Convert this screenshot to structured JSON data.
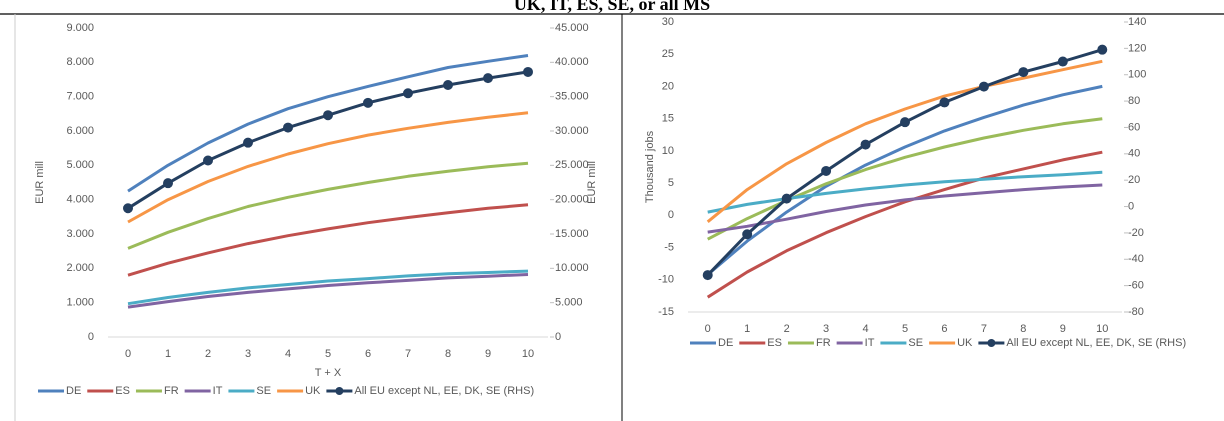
{
  "page_title": "UK, IT, ES, SE, or all MS",
  "chart_data": [
    {
      "type": "line",
      "categories": [
        "0",
        "1",
        "2",
        "3",
        "4",
        "5",
        "6",
        "7",
        "8",
        "9",
        "10"
      ],
      "x_label": "T + X",
      "y_label": "EUR mill",
      "y2_label": "EUR mill",
      "ylim": [
        0,
        9000
      ],
      "yticks": [
        0,
        {
          "value": 1000,
          "label": "1.000"
        },
        {
          "value": 2000,
          "label": "2.000"
        },
        {
          "value": 3000,
          "label": "3.000"
        },
        {
          "value": 4000,
          "label": "4.000"
        },
        {
          "value": 5000,
          "label": "5.000"
        },
        {
          "value": 6000,
          "label": "6.000"
        },
        {
          "value": 7000,
          "label": "7.000"
        },
        {
          "value": 8000,
          "label": "8.000"
        },
        {
          "value": 9000,
          "label": "9.000"
        }
      ],
      "y2lim": [
        0,
        45000
      ],
      "y2ticks": [
        0,
        {
          "value": 5000,
          "label": "5.000"
        },
        {
          "value": 10000,
          "label": "10.000"
        },
        {
          "value": 15000,
          "label": "15.000"
        },
        {
          "value": 20000,
          "label": "20.000"
        },
        {
          "value": 25000,
          "label": "25.000"
        },
        {
          "value": 30000,
          "label": "30.000"
        },
        {
          "value": 35000,
          "label": "35.000"
        },
        {
          "value": 40000,
          "label": "40.000"
        },
        {
          "value": 45000,
          "label": "45.000"
        }
      ],
      "series": [
        {
          "name": "DE",
          "color": "#4f81bd",
          "values": [
            4250,
            5000,
            5650,
            6200,
            6650,
            7000,
            7300,
            7580,
            7850,
            8030,
            8200
          ]
        },
        {
          "name": "ES",
          "color": "#c0504d",
          "values": [
            1800,
            2150,
            2450,
            2720,
            2950,
            3150,
            3330,
            3480,
            3620,
            3750,
            3850
          ]
        },
        {
          "name": "FR",
          "color": "#9bbb59",
          "values": [
            2580,
            3050,
            3450,
            3800,
            4070,
            4300,
            4500,
            4680,
            4830,
            4960,
            5060
          ]
        },
        {
          "name": "IT",
          "color": "#8064a2",
          "values": [
            870,
            1030,
            1180,
            1300,
            1400,
            1500,
            1580,
            1650,
            1720,
            1770,
            1820
          ]
        },
        {
          "name": "SE",
          "color": "#4bacc6",
          "values": [
            970,
            1150,
            1300,
            1430,
            1530,
            1630,
            1700,
            1780,
            1840,
            1880,
            1920
          ]
        },
        {
          "name": "UK",
          "color": "#f79646",
          "values": [
            3350,
            4000,
            4530,
            4970,
            5330,
            5630,
            5880,
            6080,
            6250,
            6400,
            6530
          ]
        },
        {
          "name": "All EU except NL, EE, DK, SE (RHS)",
          "color": "#243f60",
          "axis": "y2",
          "markers": true,
          "values": [
            18750,
            22400,
            25700,
            28300,
            30500,
            32300,
            34100,
            35500,
            36700,
            37700,
            38600
          ]
        }
      ]
    },
    {
      "type": "line",
      "categories": [
        "0",
        "1",
        "2",
        "3",
        "4",
        "5",
        "6",
        "7",
        "8",
        "9",
        "10"
      ],
      "y_label": "Thousand jobs",
      "ylim": [
        -15,
        30
      ],
      "yticks": [
        -15,
        -10,
        -5,
        0,
        5,
        10,
        15,
        20,
        25,
        30
      ],
      "y2lim": [
        -80,
        140
      ],
      "y2ticks": [
        -80,
        -60,
        -40,
        -20,
        0,
        20,
        40,
        60,
        80,
        100,
        120,
        140
      ],
      "series": [
        {
          "name": "DE",
          "color": "#4f81bd",
          "values": [
            -9.2,
            -4,
            0.5,
            4.5,
            7.8,
            10.6,
            13.1,
            15.2,
            17.1,
            18.7,
            20.0
          ]
        },
        {
          "name": "ES",
          "color": "#c0504d",
          "values": [
            -12.7,
            -8.8,
            -5.5,
            -2.7,
            -0.2,
            2.1,
            4.0,
            5.8,
            7.2,
            8.6,
            9.8
          ]
        },
        {
          "name": "FR",
          "color": "#9bbb59",
          "values": [
            -3.7,
            -0.5,
            2.3,
            4.9,
            7.1,
            9.0,
            10.6,
            12.0,
            13.2,
            14.2,
            15.0
          ]
        },
        {
          "name": "IT",
          "color": "#8064a2",
          "values": [
            -2.6,
            -1.7,
            -0.6,
            0.6,
            1.6,
            2.4,
            3.0,
            3.5,
            4.0,
            4.4,
            4.7
          ]
        },
        {
          "name": "SE",
          "color": "#4bacc6",
          "values": [
            0.5,
            1.7,
            2.6,
            3.4,
            4.1,
            4.7,
            5.2,
            5.6,
            6.0,
            6.3,
            6.7
          ]
        },
        {
          "name": "UK",
          "color": "#f79646",
          "values": [
            -1.0,
            4.0,
            8.0,
            11.3,
            14.2,
            16.5,
            18.5,
            20.0,
            21.3,
            22.6,
            23.9
          ]
        },
        {
          "name": "All EU except NL, EE, DK, SE (RHS)",
          "color": "#243f60",
          "axis": "y2",
          "markers": true,
          "values": [
            -52,
            -21,
            6,
            27,
            47,
            64,
            79,
            91,
            102,
            110,
            119
          ]
        }
      ]
    }
  ]
}
